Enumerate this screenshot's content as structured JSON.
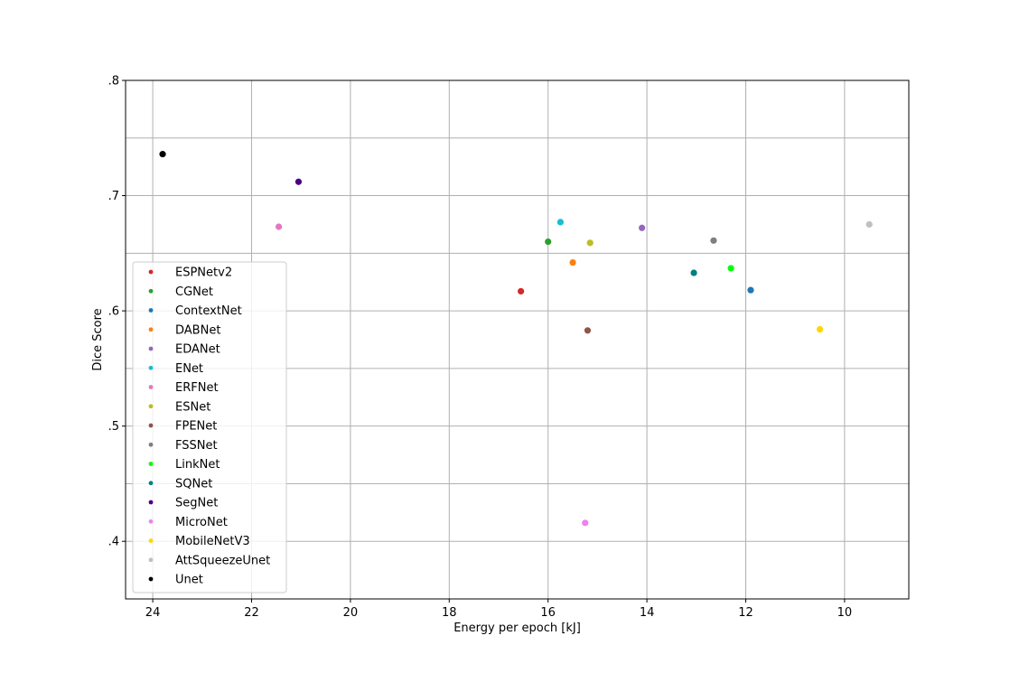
{
  "chart_data": {
    "type": "scatter",
    "title": "",
    "xlabel": "Energy per epoch [kJ]",
    "ylabel": "Dice Score",
    "x_inverted": true,
    "xlim": [
      24.55,
      8.7
    ],
    "ylim": [
      0.35,
      0.8
    ],
    "x_ticks": [
      24,
      22,
      20,
      18,
      16,
      14,
      12,
      10
    ],
    "x_tick_labels": [
      "24",
      "22",
      "20",
      "18",
      "16",
      "14",
      "12",
      "10"
    ],
    "y_ticks": [
      0.4,
      0.5,
      0.6,
      0.7,
      0.8
    ],
    "y_tick_labels": [
      ".4",
      ".5",
      ".6",
      ".7",
      ".8"
    ],
    "y_minor_grid": [
      0.45,
      0.55,
      0.65,
      0.75
    ],
    "grid": true,
    "legend_position": "lower-left",
    "series": [
      {
        "name": "ESPNetv2",
        "color": "#d62728",
        "points": [
          [
            16.55,
            0.617
          ]
        ]
      },
      {
        "name": "CGNet",
        "color": "#2ca02c",
        "points": [
          [
            16.0,
            0.66
          ]
        ]
      },
      {
        "name": "ContextNet",
        "color": "#1f77b4",
        "points": [
          [
            11.9,
            0.618
          ]
        ]
      },
      {
        "name": "DABNet",
        "color": "#ff7f0e",
        "points": [
          [
            15.5,
            0.642
          ]
        ]
      },
      {
        "name": "EDANet",
        "color": "#9467bd",
        "points": [
          [
            14.1,
            0.672
          ]
        ]
      },
      {
        "name": "ENet",
        "color": "#17becf",
        "points": [
          [
            15.75,
            0.677
          ]
        ]
      },
      {
        "name": "ERFNet",
        "color": "#e377c2",
        "points": [
          [
            21.45,
            0.673
          ]
        ]
      },
      {
        "name": "ESNet",
        "color": "#bcbd22",
        "points": [
          [
            15.15,
            0.659
          ]
        ]
      },
      {
        "name": "FPENet",
        "color": "#8c564b",
        "points": [
          [
            15.2,
            0.583
          ]
        ]
      },
      {
        "name": "FSSNet",
        "color": "#7f7f7f",
        "points": [
          [
            12.65,
            0.661
          ]
        ]
      },
      {
        "name": "LinkNet",
        "color": "#00ff00",
        "points": [
          [
            12.3,
            0.637
          ]
        ]
      },
      {
        "name": "SQNet",
        "color": "#008080",
        "points": [
          [
            13.05,
            0.633
          ]
        ]
      },
      {
        "name": "SegNet",
        "color": "#4b0082",
        "points": [
          [
            21.05,
            0.712
          ]
        ]
      },
      {
        "name": "MicroNet",
        "color": "#ee82ee",
        "points": [
          [
            15.25,
            0.416
          ]
        ]
      },
      {
        "name": "MobileNetV3",
        "color": "#ffd700",
        "points": [
          [
            10.5,
            0.584
          ]
        ]
      },
      {
        "name": "AttSqueezeUnet",
        "color": "#c0c0c0",
        "points": [
          [
            9.5,
            0.675
          ]
        ]
      },
      {
        "name": "Unet",
        "color": "#000000",
        "points": [
          [
            23.8,
            0.736
          ]
        ]
      }
    ]
  }
}
